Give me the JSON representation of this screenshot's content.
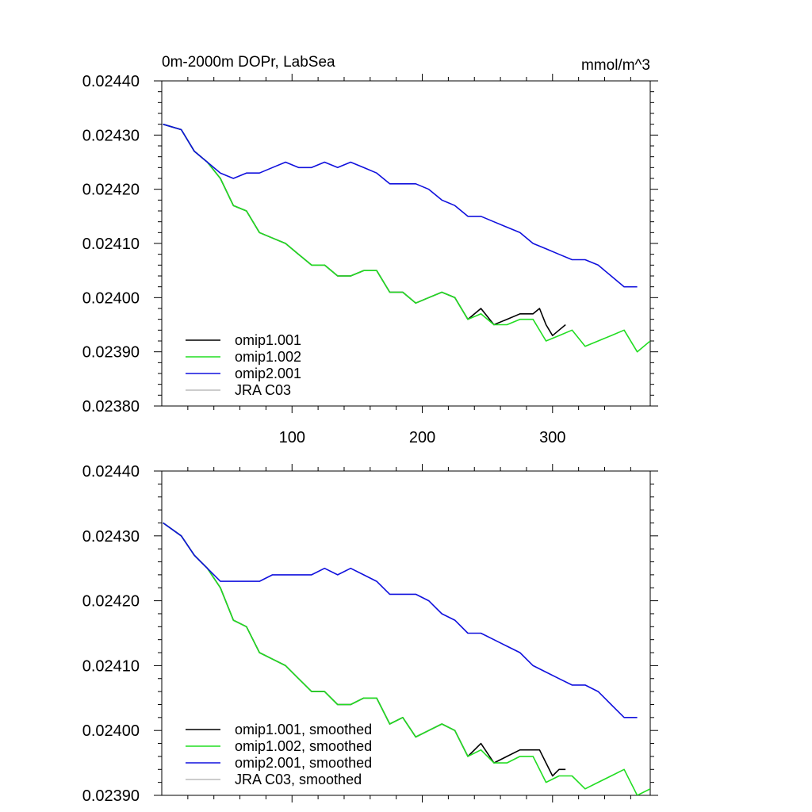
{
  "chart_data": [
    {
      "type": "line",
      "title_left": "0m-2000m DOPr, LabSea",
      "title_right": "mmol/m^3",
      "xlim": [
        0,
        375
      ],
      "ylim": [
        0.0238,
        0.0244
      ],
      "x_ticks": [
        100,
        200,
        300
      ],
      "x_tick_labels": [
        "100",
        "200",
        "300"
      ],
      "y_ticks": [
        0.0238,
        0.0239,
        0.024,
        0.0241,
        0.0242,
        0.0243,
        0.0244
      ],
      "y_tick_labels": [
        "0.02380",
        "0.02390",
        "0.02400",
        "0.02410",
        "0.02420",
        "0.02430",
        "0.02440"
      ],
      "legend_position": "bottom-left",
      "series": [
        {
          "name": "omip1.001",
          "color": "#000000",
          "x": [
            1,
            15,
            25,
            35,
            45,
            55,
            65,
            75,
            85,
            95,
            105,
            115,
            125,
            135,
            145,
            155,
            165,
            175,
            185,
            195,
            205,
            215,
            225,
            235,
            245,
            255,
            265,
            275,
            285,
            290,
            295,
            300,
            305,
            310
          ],
          "y": [
            0.02432,
            0.02431,
            0.02427,
            0.02425,
            0.02422,
            0.02417,
            0.02416,
            0.02412,
            0.02411,
            0.0241,
            0.02408,
            0.02406,
            0.02406,
            0.02404,
            0.02404,
            0.02405,
            0.02405,
            0.02401,
            0.02401,
            0.02399,
            0.024,
            0.02401,
            0.024,
            0.02396,
            0.02398,
            0.02395,
            0.02396,
            0.02397,
            0.02397,
            0.02398,
            0.02395,
            0.02393,
            0.02394,
            0.02395
          ]
        },
        {
          "name": "omip1.002",
          "color": "#22dd22",
          "x": [
            1,
            15,
            25,
            35,
            45,
            55,
            65,
            75,
            85,
            95,
            105,
            115,
            125,
            135,
            145,
            155,
            165,
            175,
            185,
            195,
            205,
            215,
            225,
            235,
            245,
            255,
            265,
            275,
            285,
            295,
            305,
            315,
            325,
            335,
            345,
            355,
            365,
            375
          ],
          "y": [
            0.02432,
            0.02431,
            0.02427,
            0.02425,
            0.02422,
            0.02417,
            0.02416,
            0.02412,
            0.02411,
            0.0241,
            0.02408,
            0.02406,
            0.02406,
            0.02404,
            0.02404,
            0.02405,
            0.02405,
            0.02401,
            0.02401,
            0.02399,
            0.024,
            0.02401,
            0.024,
            0.02396,
            0.02397,
            0.02395,
            0.02395,
            0.02396,
            0.02396,
            0.02392,
            0.02393,
            0.02394,
            0.02391,
            0.02392,
            0.02393,
            0.02394,
            0.0239,
            0.02392
          ]
        },
        {
          "name": "omip2.001",
          "color": "#1010dd",
          "x": [
            1,
            15,
            25,
            35,
            45,
            55,
            65,
            75,
            85,
            95,
            105,
            115,
            125,
            135,
            145,
            155,
            165,
            175,
            185,
            195,
            205,
            215,
            225,
            235,
            245,
            255,
            265,
            275,
            285,
            295,
            305,
            315,
            325,
            335,
            345,
            355,
            365
          ],
          "y": [
            0.02432,
            0.02431,
            0.02427,
            0.02425,
            0.02423,
            0.02422,
            0.02423,
            0.02423,
            0.02424,
            0.02425,
            0.02424,
            0.02424,
            0.02425,
            0.02424,
            0.02425,
            0.02424,
            0.02423,
            0.02421,
            0.02421,
            0.02421,
            0.0242,
            0.02418,
            0.02417,
            0.02415,
            0.02415,
            0.02414,
            0.02413,
            0.02412,
            0.0241,
            0.02409,
            0.02408,
            0.02407,
            0.02407,
            0.02406,
            0.02404,
            0.02402,
            0.02402
          ]
        },
        {
          "name": "JRA C03",
          "color": "#bbbbbb",
          "x": [],
          "y": []
        }
      ]
    },
    {
      "type": "line",
      "xlim": [
        0,
        375
      ],
      "ylim": [
        0.0239,
        0.0244
      ],
      "x_ticks": [
        100,
        200,
        300
      ],
      "y_ticks": [
        0.0239,
        0.024,
        0.0241,
        0.0242,
        0.0243,
        0.0244
      ],
      "y_tick_labels": [
        "0.02390",
        "0.02400",
        "0.02410",
        "0.02420",
        "0.02430",
        "0.02440"
      ],
      "legend_position": "bottom-left",
      "series": [
        {
          "name": "omip1.001, smoothed",
          "color": "#000000",
          "x": [
            1,
            15,
            25,
            35,
            45,
            55,
            65,
            75,
            85,
            95,
            105,
            115,
            125,
            135,
            145,
            155,
            165,
            175,
            185,
            195,
            205,
            215,
            225,
            235,
            245,
            255,
            265,
            275,
            285,
            290,
            295,
            300,
            305,
            310
          ],
          "y": [
            0.02432,
            0.0243,
            0.02427,
            0.02425,
            0.02422,
            0.02417,
            0.02416,
            0.02412,
            0.02411,
            0.0241,
            0.02408,
            0.02406,
            0.02406,
            0.02404,
            0.02404,
            0.02405,
            0.02405,
            0.02401,
            0.02402,
            0.02399,
            0.024,
            0.02401,
            0.024,
            0.02396,
            0.02398,
            0.02395,
            0.02396,
            0.02397,
            0.02397,
            0.02397,
            0.02395,
            0.02393,
            0.02394,
            0.02394
          ]
        },
        {
          "name": "omip1.002, smoothed",
          "color": "#22dd22",
          "x": [
            1,
            15,
            25,
            35,
            45,
            55,
            65,
            75,
            85,
            95,
            105,
            115,
            125,
            135,
            145,
            155,
            165,
            175,
            185,
            195,
            205,
            215,
            225,
            235,
            245,
            255,
            265,
            275,
            285,
            295,
            305,
            315,
            325,
            335,
            345,
            355,
            365,
            375
          ],
          "y": [
            0.02432,
            0.0243,
            0.02427,
            0.02425,
            0.02422,
            0.02417,
            0.02416,
            0.02412,
            0.02411,
            0.0241,
            0.02408,
            0.02406,
            0.02406,
            0.02404,
            0.02404,
            0.02405,
            0.02405,
            0.02401,
            0.02402,
            0.02399,
            0.024,
            0.02401,
            0.024,
            0.02396,
            0.02397,
            0.02395,
            0.02395,
            0.02396,
            0.02396,
            0.02392,
            0.02393,
            0.02393,
            0.02391,
            0.02392,
            0.02393,
            0.02394,
            0.0239,
            0.02391
          ]
        },
        {
          "name": "omip2.001, smoothed",
          "color": "#1010dd",
          "x": [
            1,
            15,
            25,
            35,
            45,
            55,
            65,
            75,
            85,
            95,
            105,
            115,
            125,
            135,
            145,
            155,
            165,
            175,
            185,
            195,
            205,
            215,
            225,
            235,
            245,
            255,
            265,
            275,
            285,
            295,
            305,
            315,
            325,
            335,
            345,
            355,
            365
          ],
          "y": [
            0.02432,
            0.0243,
            0.02427,
            0.02425,
            0.02423,
            0.02423,
            0.02423,
            0.02423,
            0.02424,
            0.02424,
            0.02424,
            0.02424,
            0.02425,
            0.02424,
            0.02425,
            0.02424,
            0.02423,
            0.02421,
            0.02421,
            0.02421,
            0.0242,
            0.02418,
            0.02417,
            0.02415,
            0.02415,
            0.02414,
            0.02413,
            0.02412,
            0.0241,
            0.02409,
            0.02408,
            0.02407,
            0.02407,
            0.02406,
            0.02404,
            0.02402,
            0.02402
          ]
        },
        {
          "name": "JRA C03, smoothed",
          "color": "#bbbbbb",
          "x": [],
          "y": []
        }
      ]
    }
  ]
}
